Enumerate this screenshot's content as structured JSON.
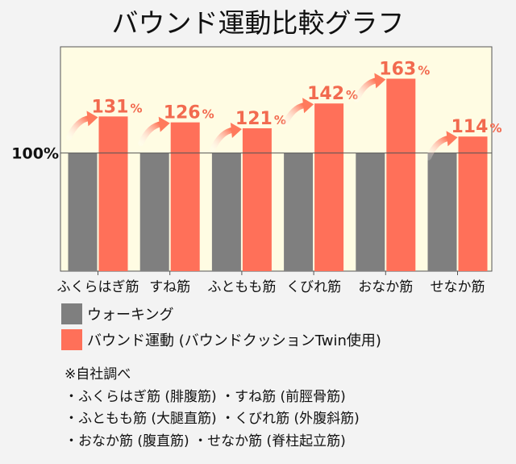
{
  "chart_data": {
    "type": "bar",
    "title": "バウンド運動比較グラフ",
    "categories": [
      "ふくらはぎ筋",
      "すね筋",
      "ふともも筋",
      "くびれ筋",
      "おなか筋",
      "せなか筋"
    ],
    "series": [
      {
        "name": "ウォーキング",
        "values": [
          100,
          100,
          100,
          100,
          100,
          100
        ]
      },
      {
        "name": "バウンド運動 (バウンドクッションTwin使用)",
        "values": [
          131,
          126,
          121,
          142,
          163,
          114
        ]
      }
    ],
    "value_labels": [
      "131",
      "126",
      "121",
      "142",
      "163",
      "114"
    ],
    "value_suffix": "%",
    "reference_label": "100%",
    "reference_value": 100,
    "ylim": [
      0,
      190
    ],
    "grid": false,
    "legend": "bottom-left"
  },
  "colors": {
    "plot_bg": "#fffce3",
    "walking": "#7f7f7f",
    "bound": "#ff7059",
    "label": "#f26a4f",
    "arrow": "#ff7a5c"
  },
  "notes": {
    "heading": "※自社調べ",
    "lines": [
      "・ふくらはぎ筋 (腓腹筋) ・すね筋 (前脛骨筋)",
      "・ふともも筋 (大腿直筋) ・くびれ筋 (外腹斜筋)",
      "・おなか筋 (腹直筋) ・せなか筋 (脊柱起立筋)"
    ]
  }
}
